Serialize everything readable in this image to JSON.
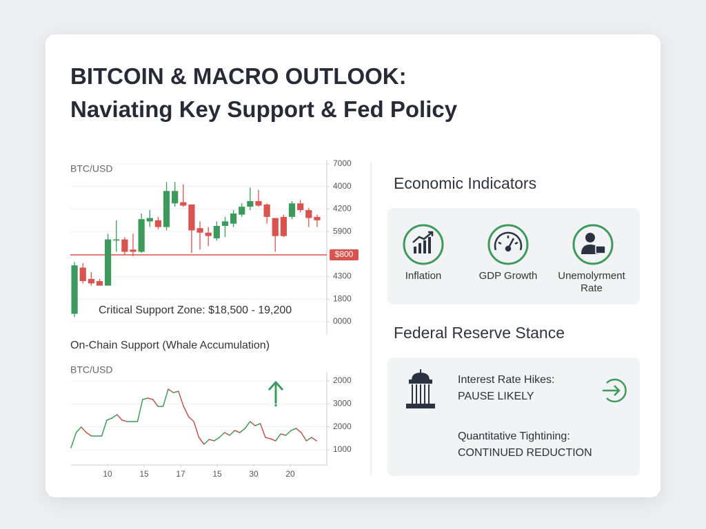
{
  "title_lines": [
    "BITCOIN & MACRO OUTLOOK:",
    "Naviating Key Support & Fed Policy"
  ],
  "chart_data": [
    {
      "type": "candlestick",
      "label": "BTC/USD",
      "annotation": "Critical Support Zone: $18,500 - 19,200",
      "ylim": [
        0,
        7000
      ],
      "yticks": [
        7000,
        {
          "value": 6000,
          "label": "4000"
        },
        {
          "value": 5000,
          "label": "4200"
        },
        {
          "value": 4000,
          "label": "5900"
        },
        {
          "value": 2000,
          "label": "4300"
        },
        {
          "value": 1000,
          "label": "1800"
        },
        {
          "value": 0,
          "label": "0000"
        }
      ],
      "grid": true,
      "up_color": "#3d9a5c",
      "down_color": "#d9534f",
      "reference_line": {
        "value": 2965,
        "label": "$800",
        "color": "#d9534f"
      },
      "open": [
        350,
        2400,
        1900,
        1800,
        1600,
        3600,
        3650,
        3200,
        3100,
        4450,
        4500,
        4200,
        5250,
        5300,
        5200,
        4150,
        3950,
        3700,
        4250,
        4350,
        4750,
        5100,
        5350,
        5200,
        4600,
        4650,
        4650,
        5250,
        4950,
        4650
      ],
      "high": [
        2650,
        2600,
        2200,
        1900,
        3900,
        4500,
        3750,
        3900,
        4800,
        4950,
        4650,
        6200,
        6200,
        6100,
        5200,
        4450,
        4200,
        4450,
        4650,
        4950,
        5250,
        5950,
        5850,
        5250,
        4600,
        4750,
        5350,
        5400,
        5050,
        4750
      ],
      "low": [
        200,
        1700,
        1600,
        1600,
        1600,
        3100,
        2950,
        2900,
        3050,
        4200,
        4100,
        4050,
        5100,
        5100,
        3050,
        3200,
        3350,
        3600,
        3750,
        4200,
        4650,
        4950,
        5100,
        4350,
        3100,
        3750,
        4550,
        4850,
        4200,
        4200
      ],
      "close": [
        2500,
        1800,
        1700,
        1600,
        3650,
        3650,
        3100,
        3100,
        4550,
        4600,
        4200,
        5800,
        5800,
        5150,
        4050,
        3950,
        3800,
        4250,
        4450,
        4800,
        5100,
        5350,
        5150,
        4650,
        3800,
        3800,
        5250,
        4950,
        4600,
        4500
      ]
    },
    {
      "type": "line",
      "title": "On-Chain Support (Whale Accumulation)",
      "label": "BTC/USD",
      "xlim": [
        5,
        40
      ],
      "xticks": [
        10,
        15,
        {
          "value": 20,
          "label": "17"
        },
        {
          "value": 25,
          "label": "15"
        },
        30,
        {
          "value": 35,
          "label": "20"
        }
      ],
      "ylim": [
        340,
        4000
      ],
      "yticks": [
        {
          "value": 4000,
          "label": "2000"
        },
        3000,
        2000,
        1000
      ],
      "grid": true,
      "up_color": "#3d9a5c",
      "down_color": "#c0574a",
      "annotation_color": "#3d9a5c",
      "x": [
        5.0,
        5.7,
        6.4,
        7.1,
        7.8,
        8.5,
        9.2,
        9.9,
        10.6,
        11.3,
        12.0,
        12.7,
        13.4,
        14.1,
        14.8,
        15.5,
        16.2,
        16.9,
        17.6,
        18.3,
        19.0,
        19.7,
        20.4,
        21.1,
        21.8,
        22.5,
        23.2,
        23.9,
        24.6,
        25.3,
        26.0,
        26.7,
        27.4,
        28.1,
        28.8,
        29.5,
        30.2,
        30.9,
        31.6,
        32.3,
        33.0,
        33.7,
        34.4,
        35.1,
        35.8,
        36.5,
        37.2,
        37.9,
        38.6
      ],
      "values": [
        1090,
        1750,
        1990,
        1750,
        1600,
        1600,
        1600,
        2290,
        2380,
        2530,
        2290,
        2230,
        2230,
        2230,
        3190,
        3250,
        3190,
        2890,
        2890,
        3640,
        3490,
        3550,
        2890,
        2440,
        2230,
        1540,
        1240,
        1450,
        1390,
        1540,
        1750,
        1630,
        1840,
        1750,
        1930,
        2230,
        2050,
        2140,
        1540,
        1480,
        1390,
        1690,
        1630,
        1840,
        1930,
        1750,
        1390,
        1540,
        1390
      ]
    }
  ],
  "economic_indicators": {
    "heading": "Economic Indicators",
    "items": [
      "Inflation",
      "GDP Growth",
      "Unemolyrment Rate"
    ]
  },
  "federal_reserve": {
    "heading": "Federal Reserve Stance",
    "items": [
      {
        "label": "Interest Rate Hikes:",
        "value": "PAUSE LIKELY"
      },
      {
        "label": "Quantitative Tightining:",
        "value": "CONTINUED REDUCTION"
      }
    ]
  }
}
